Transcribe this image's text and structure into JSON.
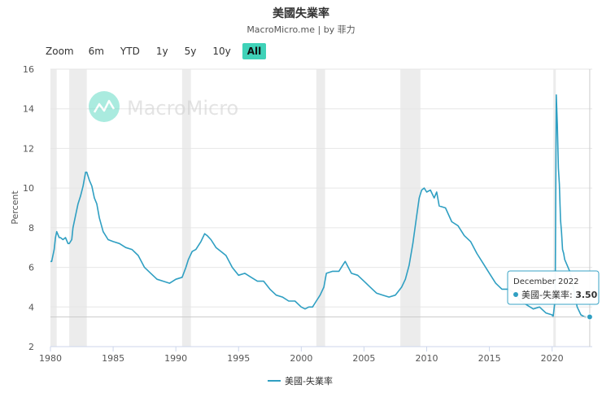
{
  "title": "美國失業率",
  "subtitle": "MacroMicro.me | by 菲力",
  "zoom": {
    "label": "Zoom",
    "buttons": [
      "6m",
      "YTD",
      "1y",
      "5y",
      "10y",
      "All"
    ],
    "active": "All"
  },
  "watermark": "MacroMicro",
  "colors": {
    "line": "#2f9fc2",
    "recession": "#ececec",
    "active_button": "#3fd2b8",
    "watermark": "#66dcc6"
  },
  "tooltip": {
    "date": "December 2022",
    "series": "美國-失業率",
    "value": "3.50"
  },
  "chart_data": {
    "type": "line",
    "title": "美國失業率",
    "ylabel": "Percent",
    "xlabel": "",
    "ylim": [
      2,
      16
    ],
    "xlim": [
      1980,
      2023.2
    ],
    "y_ticks": [
      "2",
      "4",
      "6",
      "8",
      "10",
      "12",
      "14",
      "16"
    ],
    "x_ticks": [
      "1980",
      "1985",
      "1990",
      "1995",
      "2000",
      "2005",
      "2010",
      "2015",
      "2020"
    ],
    "legend": "bottom-center",
    "grid": "horizontal",
    "recessions": [
      [
        1980.0,
        1980.5
      ],
      [
        1981.5,
        1982.9
      ],
      [
        1990.5,
        1991.2
      ],
      [
        2001.2,
        2001.9
      ],
      [
        2007.9,
        2009.5
      ],
      [
        2020.1,
        2020.3
      ]
    ],
    "series": [
      {
        "name": "美國-失業率",
        "x": [
          1980.0,
          1980.1,
          1980.3,
          1980.4,
          1980.5,
          1980.7,
          1980.8,
          1981.0,
          1981.2,
          1981.4,
          1981.5,
          1981.7,
          1981.8,
          1982.0,
          1982.2,
          1982.4,
          1982.6,
          1982.8,
          1982.9,
          1983.1,
          1983.3,
          1983.5,
          1983.7,
          1983.9,
          1984.2,
          1984.6,
          1985.0,
          1985.5,
          1986.0,
          1986.5,
          1987.0,
          1987.5,
          1988.0,
          1988.5,
          1989.0,
          1989.5,
          1990.0,
          1990.5,
          1990.8,
          1991.0,
          1991.3,
          1991.6,
          1992.0,
          1992.3,
          1992.5,
          1992.8,
          1993.2,
          1993.6,
          1994.0,
          1994.5,
          1995.0,
          1995.5,
          1996.0,
          1996.5,
          1997.0,
          1997.5,
          1998.0,
          1998.5,
          1999.0,
          1999.5,
          2000.0,
          2000.3,
          2000.6,
          2000.9,
          2001.2,
          2001.5,
          2001.8,
          2002.0,
          2002.5,
          2003.0,
          2003.3,
          2003.5,
          2004.0,
          2004.5,
          2005.0,
          2005.5,
          2006.0,
          2006.5,
          2007.0,
          2007.5,
          2008.0,
          2008.3,
          2008.6,
          2008.9,
          2009.2,
          2009.4,
          2009.6,
          2009.8,
          2010.0,
          2010.3,
          2010.6,
          2010.8,
          2011.0,
          2011.5,
          2012.0,
          2012.5,
          2013.0,
          2013.5,
          2014.0,
          2014.5,
          2015.0,
          2015.5,
          2016.0,
          2016.5,
          2017.0,
          2017.5,
          2018.0,
          2018.5,
          2019.0,
          2019.5,
          2020.0,
          2020.08,
          2020.25,
          2020.33,
          2020.42,
          2020.5,
          2020.58,
          2020.67,
          2020.75,
          2020.83,
          2020.92,
          2021.0,
          2021.2,
          2021.4,
          2021.6,
          2021.8,
          2022.0,
          2022.3,
          2022.6,
          2022.9,
          2023.0
        ],
        "y": [
          6.3,
          6.3,
          6.9,
          7.5,
          7.8,
          7.5,
          7.5,
          7.4,
          7.5,
          7.2,
          7.2,
          7.4,
          8.0,
          8.6,
          9.2,
          9.6,
          10.1,
          10.8,
          10.8,
          10.4,
          10.1,
          9.5,
          9.2,
          8.5,
          7.8,
          7.4,
          7.3,
          7.2,
          7.0,
          6.9,
          6.6,
          6.0,
          5.7,
          5.4,
          5.3,
          5.2,
          5.4,
          5.5,
          6.0,
          6.4,
          6.8,
          6.9,
          7.3,
          7.7,
          7.6,
          7.4,
          7.0,
          6.8,
          6.6,
          6.0,
          5.6,
          5.7,
          5.5,
          5.3,
          5.3,
          4.9,
          4.6,
          4.5,
          4.3,
          4.3,
          4.0,
          3.9,
          4.0,
          4.0,
          4.3,
          4.6,
          5.0,
          5.7,
          5.8,
          5.8,
          6.1,
          6.3,
          5.7,
          5.6,
          5.3,
          5.0,
          4.7,
          4.6,
          4.5,
          4.6,
          5.0,
          5.4,
          6.1,
          7.2,
          8.6,
          9.5,
          9.9,
          10.0,
          9.8,
          9.9,
          9.5,
          9.8,
          9.1,
          9.0,
          8.3,
          8.1,
          7.6,
          7.3,
          6.7,
          6.2,
          5.7,
          5.2,
          4.9,
          4.9,
          4.7,
          4.3,
          4.1,
          3.9,
          4.0,
          3.7,
          3.6,
          3.5,
          4.4,
          14.7,
          13.2,
          11.0,
          10.2,
          8.4,
          7.8,
          6.9,
          6.7,
          6.4,
          6.1,
          5.8,
          5.4,
          4.6,
          4.0,
          3.6,
          3.5,
          3.5,
          3.5
        ]
      }
    ]
  },
  "legend": {
    "label": "美國-失業率"
  }
}
